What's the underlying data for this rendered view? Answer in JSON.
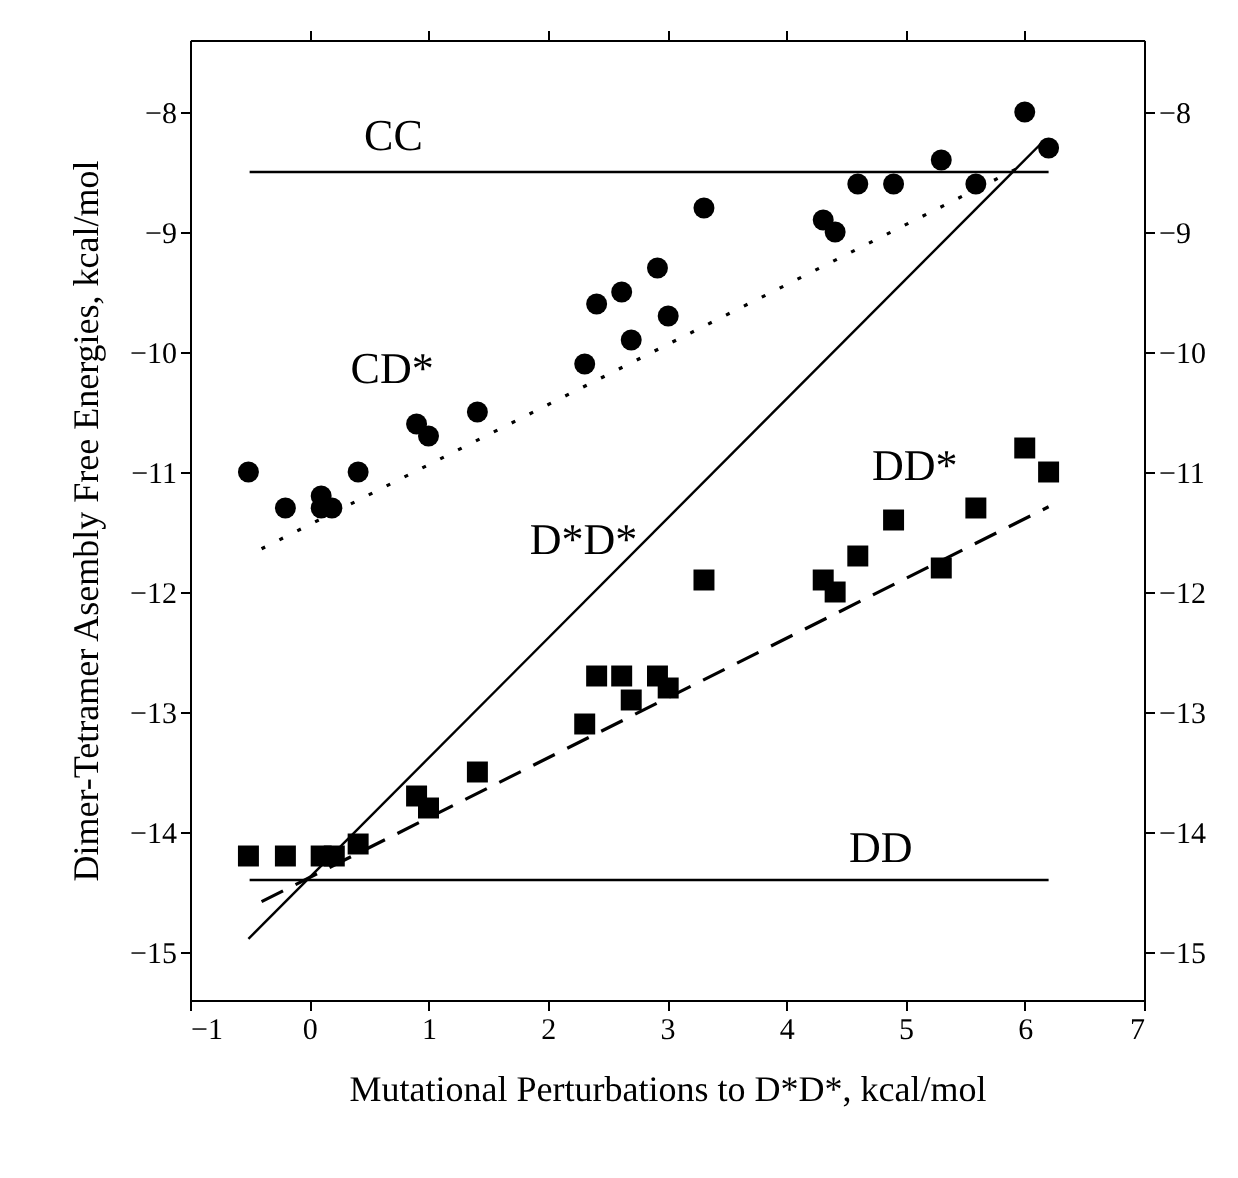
{
  "chart_data": {
    "type": "scatter",
    "xlabel": "Mutational Perturbations to D*D*, kcal/mol",
    "ylabel": "Dimer-Tetramer Asembly Free Energies, kcal/mol",
    "xlim": [
      -1,
      7
    ],
    "xticks": [
      -1,
      0,
      1,
      2,
      3,
      4,
      5,
      6,
      7
    ],
    "ylim": [
      -15.4,
      -7.4
    ],
    "yticks": [
      -15,
      -14,
      -13,
      -12,
      -11,
      -10,
      -9,
      -8
    ],
    "y2lim": [
      -15.4,
      -7.4
    ],
    "y2ticks": [
      -15,
      -14,
      -13,
      -12,
      -11,
      -10,
      -9,
      -8
    ],
    "grid": false,
    "series": [
      {
        "marker": "circle",
        "color": "#000000",
        "x": [
          -0.51,
          -0.2,
          0.1,
          0.1,
          0.19,
          0.41,
          0.9,
          1.0,
          1.41,
          2.31,
          2.41,
          2.62,
          2.7,
          2.92,
          3.01,
          3.31,
          4.31,
          4.41,
          4.6,
          4.9,
          5.3,
          5.59,
          6.0,
          6.2
        ],
        "values": [
          -11.0,
          -11.3,
          -11.2,
          -11.3,
          -11.3,
          -11.0,
          -10.6,
          -10.7,
          -10.5,
          -10.1,
          -9.6,
          -9.5,
          -9.9,
          -9.3,
          -9.7,
          -8.8,
          -8.9,
          -9.0,
          -8.6,
          -8.6,
          -8.4,
          -8.6,
          -8.0,
          -8.3
        ]
      },
      {
        "marker": "square",
        "color": "#000000",
        "x": [
          -0.51,
          -0.2,
          0.1,
          0.21,
          0.41,
          0.9,
          1.0,
          1.41,
          2.31,
          2.41,
          2.62,
          2.7,
          2.92,
          3.01,
          3.31,
          4.31,
          4.41,
          4.6,
          4.9,
          5.3,
          5.59,
          6.0,
          6.2
        ],
        "values": [
          -14.2,
          -14.2,
          -14.2,
          -14.2,
          -14.1,
          -13.7,
          -13.8,
          -13.5,
          -13.1,
          -12.7,
          -12.7,
          -12.9,
          -12.7,
          -12.8,
          -11.9,
          -11.9,
          -12.0,
          -11.7,
          -11.4,
          -11.8,
          -11.3,
          -10.8,
          -11.0
        ]
      },
      {
        "type": "line",
        "name": "CC",
        "line_style": "solid",
        "color": "#000000",
        "x": [
          -0.5,
          6.2
        ],
        "values": [
          -8.5,
          -8.5
        ]
      },
      {
        "type": "line",
        "name": "CD*",
        "line_style": "dotted",
        "color": "#000000",
        "x": [
          -0.4,
          6.04
        ],
        "values": [
          -11.64,
          -8.42
        ]
      },
      {
        "type": "line",
        "name": "D*D*",
        "line_style": "solid",
        "color": "#000000",
        "x": [
          -0.51,
          6.15
        ],
        "values": [
          -14.89,
          -8.25
        ]
      },
      {
        "type": "line",
        "name": "DD*",
        "line_style": "dashed",
        "color": "#000000",
        "x": [
          -0.4,
          6.2
        ],
        "values": [
          -14.58,
          -11.29
        ]
      },
      {
        "type": "line",
        "name": "DD",
        "line_style": "solid",
        "color": "#000000",
        "x": [
          -0.5,
          6.2
        ],
        "values": [
          -14.4,
          -14.4
        ]
      }
    ]
  }
}
